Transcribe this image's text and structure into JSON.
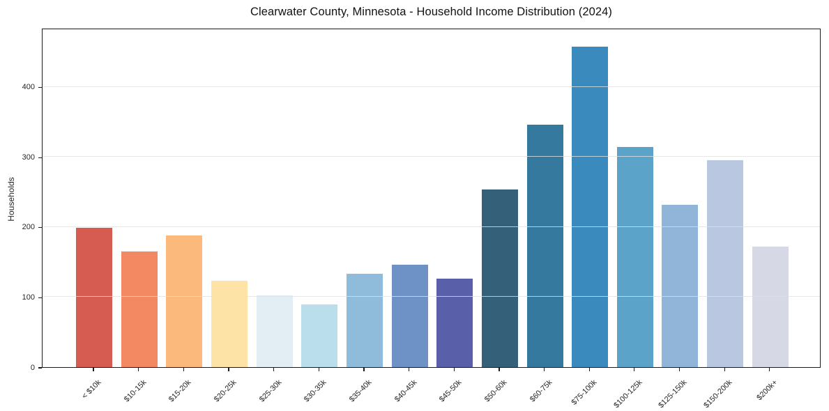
{
  "chart_data": {
    "type": "bar",
    "title": "Clearwater County, Minnesota - Household Income Distribution (2024)",
    "xlabel": "",
    "ylabel": "Households",
    "categories": [
      "< $10k",
      "$10-15k",
      "$15-20k",
      "$20-25k",
      "$25-30k",
      "$30-35k",
      "$35-40k",
      "$40-45k",
      "$45-50k",
      "$50-60k",
      "$60-75k",
      "$75-100k",
      "$100-125k",
      "$125-150k",
      "$150-200k",
      "$200k+"
    ],
    "values": [
      199,
      165,
      188,
      123,
      102,
      89,
      133,
      146,
      126,
      253,
      346,
      457,
      314,
      232,
      295,
      172
    ],
    "bar_colors": [
      "#d65c52",
      "#f28963",
      "#fbba7b",
      "#fde3a6",
      "#e2eef3",
      "#badeeb",
      "#90bcdc",
      "#6e92c5",
      "#5a5fa9",
      "#34607a",
      "#35799f",
      "#3a8abd",
      "#5ba3c9",
      "#91b5d8",
      "#b9c8e0",
      "#d7d8e5"
    ],
    "ylim": [
      0,
      484
    ],
    "yticks": [
      0,
      100,
      200,
      300,
      400
    ],
    "grid": "horizontal",
    "legend": "none",
    "background_color": "#ffffff",
    "gridline_color": "#e1e1e1",
    "spine_color": "#1a1a1a"
  }
}
